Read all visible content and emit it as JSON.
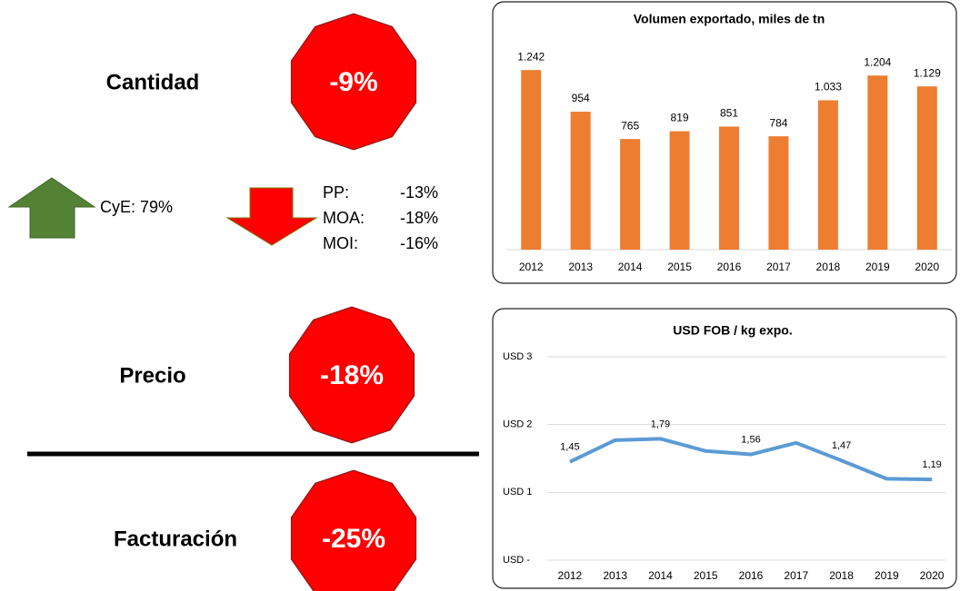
{
  "summary": [
    {
      "label": "Cantidad",
      "change": "-9%"
    },
    {
      "label": "Precio",
      "change": "-18%"
    },
    {
      "label": "Facturación",
      "change": "-25%"
    }
  ],
  "cye": "CyE: 79%",
  "breakdown": [
    {
      "label": "PP:",
      "change": "-13%"
    },
    {
      "label": "MOA:",
      "change": "-18%"
    },
    {
      "label": "MOI:",
      "change": "-16%"
    }
  ],
  "chart_data": [
    {
      "type": "bar",
      "title": "Volumen exportado, miles de tn",
      "categories": [
        "2012",
        "2013",
        "2014",
        "2015",
        "2016",
        "2017",
        "2018",
        "2019",
        "2020"
      ],
      "values": [
        1242,
        954,
        765,
        819,
        851,
        784,
        1033,
        1204,
        1129
      ],
      "value_labels": [
        "1.242",
        "954",
        "765",
        "819",
        "851",
        "784",
        "1.033",
        "1.204",
        "1.129"
      ],
      "color": "#ed7d31",
      "ylim": [
        0,
        1400
      ]
    },
    {
      "type": "line",
      "title": "USD FOB / kg expo.",
      "categories": [
        "2012",
        "2013",
        "2014",
        "2015",
        "2016",
        "2017",
        "2018",
        "2019",
        "2020"
      ],
      "values": [
        1.45,
        1.77,
        1.79,
        1.61,
        1.56,
        1.73,
        1.47,
        1.2,
        1.19
      ],
      "value_labels": [
        "1,45",
        null,
        "1,79",
        null,
        "1,56",
        null,
        "1,47",
        null,
        "1,19"
      ],
      "color": "#5b9bd5",
      "ylim": [
        0,
        3
      ],
      "yticks": [
        {
          "value": 0,
          "label": "USD -"
        },
        {
          "value": 1,
          "label": "USD 1"
        },
        {
          "value": 2,
          "label": "USD 2"
        },
        {
          "value": 3,
          "label": "USD 3"
        }
      ],
      "grid": true
    }
  ]
}
